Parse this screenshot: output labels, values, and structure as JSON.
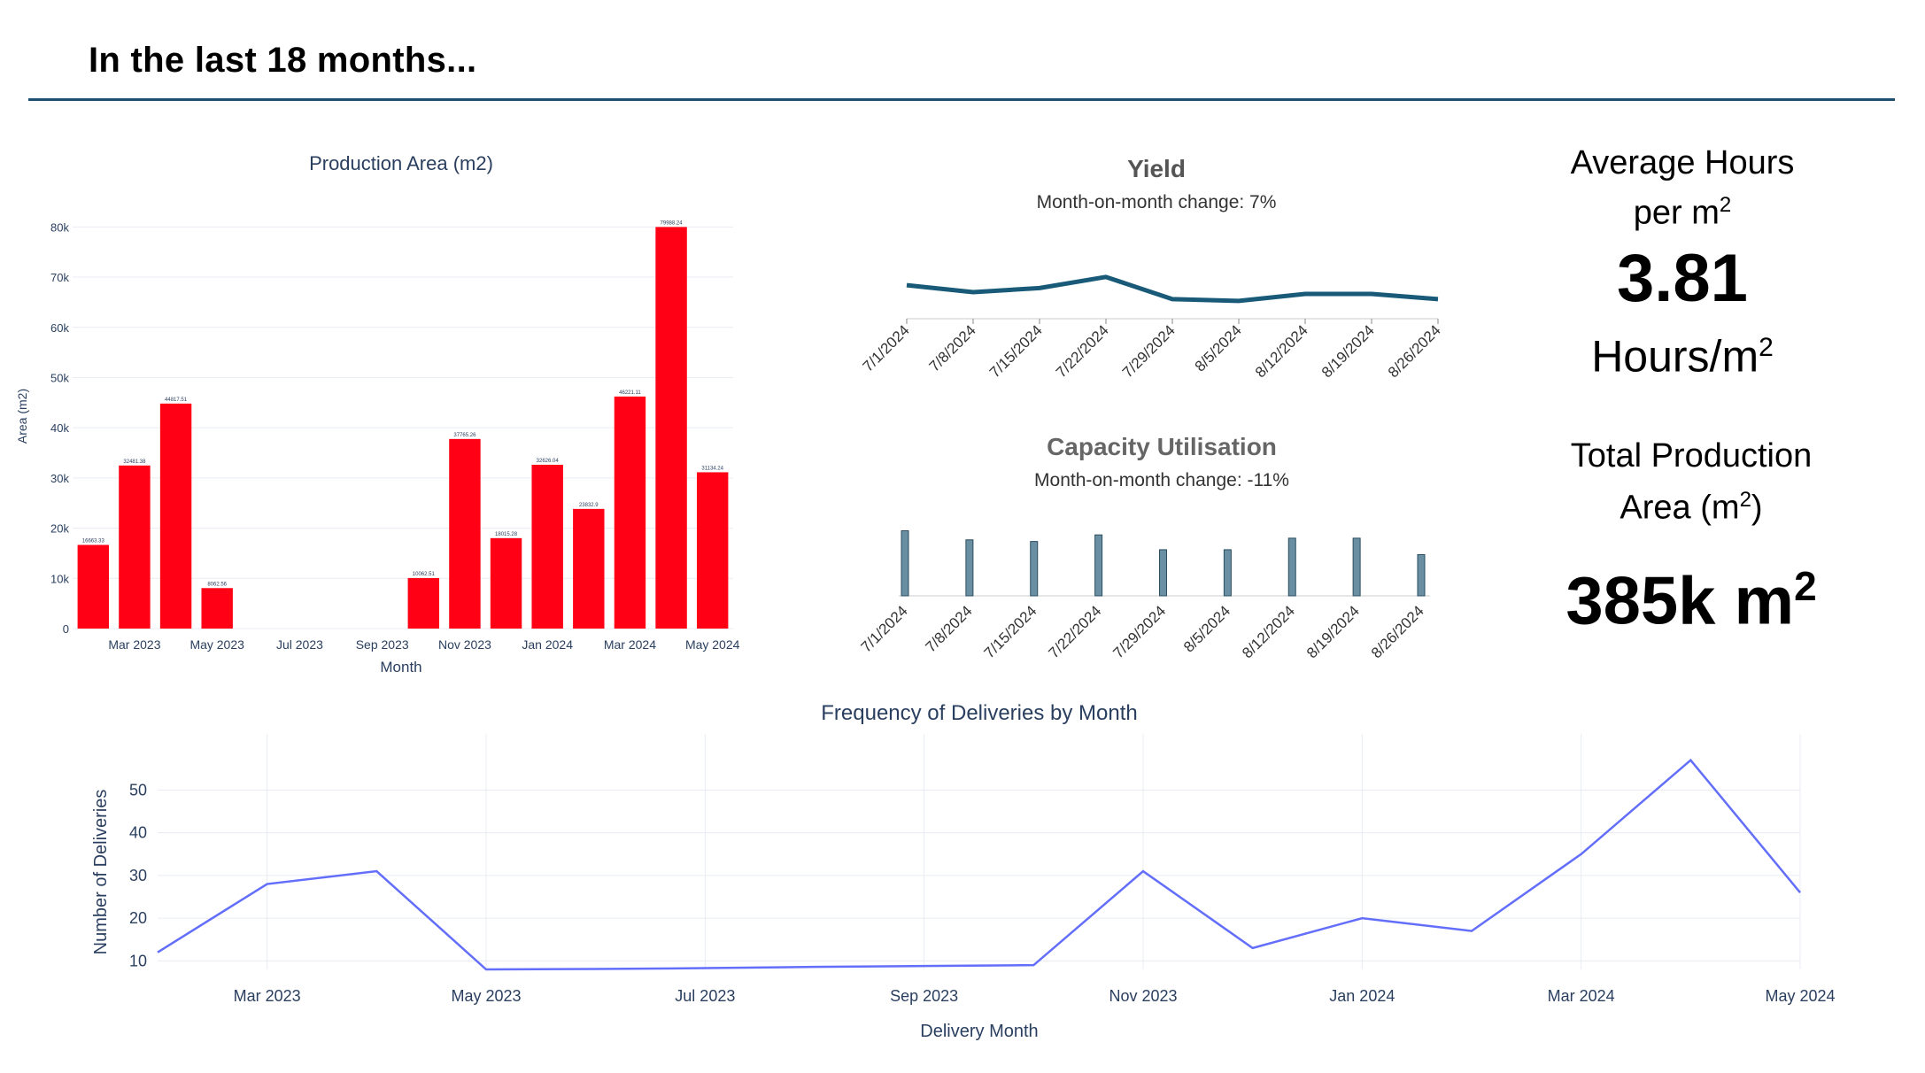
{
  "page": {
    "title": "In the last 18 months..."
  },
  "chart_data": [
    {
      "type": "bar",
      "title": "Production Area (m2)",
      "xlabel": "Month",
      "ylabel": "Area (m2)",
      "color": "#ff0015",
      "ylim": [
        0,
        82000
      ],
      "yticks": [
        0,
        10000,
        20000,
        30000,
        40000,
        50000,
        60000,
        70000,
        80000
      ],
      "yticklabels": [
        "0",
        "10k",
        "20k",
        "30k",
        "40k",
        "50k",
        "60k",
        "70k",
        "80k"
      ],
      "xticks": [
        {
          "index": 1,
          "label": "Mar 2023"
        },
        {
          "index": 3,
          "label": "May 2023"
        },
        {
          "index": 5,
          "label": "Jul 2023"
        },
        {
          "index": 7,
          "label": "Sep 2023"
        },
        {
          "index": 9,
          "label": "Nov 2023"
        },
        {
          "index": 11,
          "label": "Jan 2024"
        },
        {
          "index": 13,
          "label": "Mar 2024"
        },
        {
          "index": 15,
          "label": "May 2024"
        }
      ],
      "categories": [
        "Feb 2023",
        "Mar 2023",
        "Apr 2023",
        "May 2023",
        "Jun 2023",
        "Jul 2023",
        "Aug 2023",
        "Sep 2023",
        "Oct 2023",
        "Nov 2023",
        "Dec 2023",
        "Jan 2024",
        "Feb 2024",
        "Mar 2024",
        "Apr 2024",
        "May 2024"
      ],
      "values": [
        16663.33,
        32481.38,
        44817.51,
        8062.56,
        null,
        null,
        null,
        null,
        10062.51,
        37765.26,
        18015.28,
        32626.04,
        23832.9,
        46221.11,
        79988.24,
        31134.24
      ],
      "data_labels": [
        "16663.33",
        "32481.38",
        "44817.51",
        "8062.56",
        "",
        "",
        "",
        "",
        "10062.51",
        "37765.26",
        "18015.28",
        "32626.04",
        "23832.9",
        "46221.11",
        "79988.24",
        "31134.24"
      ]
    },
    {
      "type": "line",
      "title": "Yield",
      "subtitle": "Month-on-month change: 7%",
      "color": "#185a78",
      "categories": [
        "7/1/2024",
        "7/8/2024",
        "7/15/2024",
        "7/22/2024",
        "7/29/2024",
        "8/5/2024",
        "8/12/2024",
        "8/19/2024",
        "8/26/2024"
      ],
      "values": [
        0.62,
        0.5,
        0.57,
        0.76,
        0.38,
        0.35,
        0.47,
        0.47,
        0.38
      ],
      "ylim": [
        0,
        1
      ]
    },
    {
      "type": "bar",
      "title": "Capacity Utilisation",
      "subtitle": "Month-on-month change: -11%",
      "color": "#6a8fa3",
      "categories": [
        "7/1/2024",
        "7/8/2024",
        "7/15/2024",
        "7/22/2024",
        "7/29/2024",
        "8/5/2024",
        "8/12/2024",
        "8/19/2024",
        "8/26/2024"
      ],
      "values": [
        0.79,
        0.68,
        0.66,
        0.74,
        0.56,
        0.56,
        0.7,
        0.7,
        0.5
      ],
      "ylim": [
        0,
        1
      ]
    },
    {
      "type": "line",
      "title": "Frequency of Deliveries by Month",
      "xlabel": "Delivery Month",
      "ylabel": "Number of Deliveries",
      "color": "#636efa",
      "ylim": [
        8,
        59
      ],
      "yticks": [
        10,
        20,
        30,
        40,
        50
      ],
      "xticks": [
        {
          "index": 1,
          "label": "Mar 2023"
        },
        {
          "index": 3,
          "label": "May 2023"
        },
        {
          "index": 5,
          "label": "Jul 2023"
        },
        {
          "index": 7,
          "label": "Sep 2023"
        },
        {
          "index": 9,
          "label": "Nov 2023"
        },
        {
          "index": 11,
          "label": "Jan 2024"
        },
        {
          "index": 13,
          "label": "Mar 2024"
        },
        {
          "index": 15,
          "label": "May 2024"
        }
      ],
      "categories": [
        "Feb 2023",
        "Mar 2023",
        "Apr 2023",
        "May 2023",
        "Jun 2023",
        "Jul 2023",
        "Aug 2023",
        "Sep 2023",
        "Oct 2023",
        "Nov 2023",
        "Dec 2023",
        "Jan 2024",
        "Feb 2024",
        "Mar 2024",
        "Apr 2024",
        "May 2024"
      ],
      "values": [
        12,
        28,
        31,
        8,
        8.1,
        8.3,
        8.6,
        8.8,
        9,
        31,
        13,
        20,
        17,
        35,
        57,
        26
      ]
    }
  ],
  "kpis": {
    "avg_hours": {
      "label_line1": "Average Hours",
      "label_line2": "per m",
      "label_sup": "2",
      "value": "3.81",
      "unit": "Hours/m",
      "unit_sup": "2"
    },
    "total_area": {
      "label_line1": "Total Production",
      "label_line2": "Area (m",
      "label_sup": "2",
      "label_close": ")",
      "value": "385k m",
      "value_sup": "2"
    }
  }
}
